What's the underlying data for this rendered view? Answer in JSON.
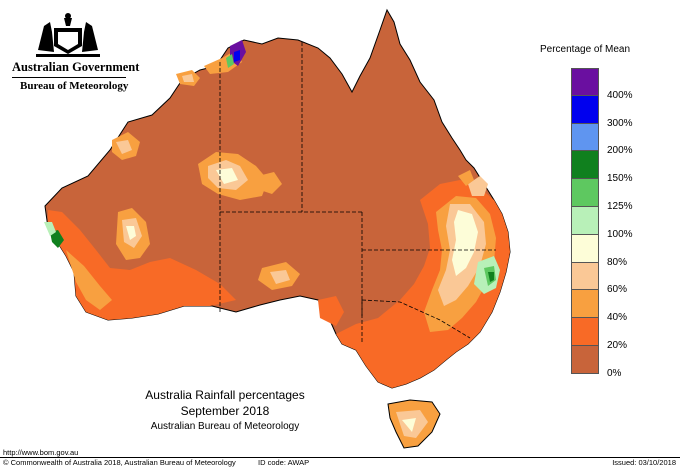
{
  "header": {
    "government": "Australian Government",
    "bureau": "Bureau of Meteorology"
  },
  "legend": {
    "title": "Percentage of Mean",
    "labels": [
      "400%",
      "300%",
      "200%",
      "150%",
      "125%",
      "100%",
      "80%",
      "60%",
      "40%",
      "20%",
      "0%"
    ],
    "colors": [
      "#6a0fa0",
      "#0000ee",
      "#5f95f0",
      "#10801e",
      "#5ec860",
      "#b8f0b8",
      "#fdfdd8",
      "#fac896",
      "#f8a040",
      "#f86a26",
      "#c8643a"
    ]
  },
  "title": {
    "line1": "Australia Rainfall percentages",
    "line2": "September 2018",
    "line3": "Australian Bureau of Meteorology"
  },
  "footer": {
    "url": "http://www.bom.gov.au",
    "copyright": "© Commonwealth of Australia 2018, Australian Bureau of Meteorology",
    "id_code": "ID code: AWAP",
    "issued": "Issued: 03/10/2018"
  },
  "map": {
    "base_color": "#c8643a",
    "border_color": "#000000"
  }
}
